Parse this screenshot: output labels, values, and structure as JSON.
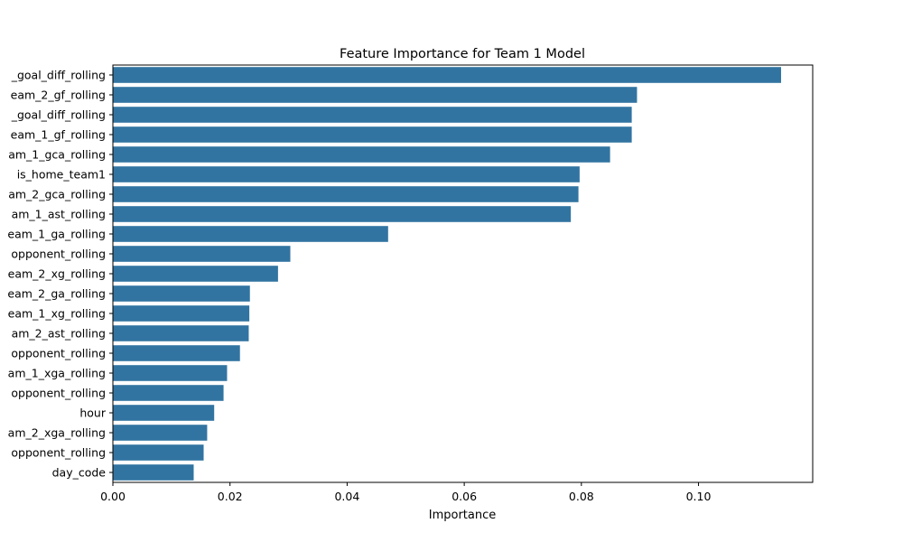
{
  "chart_data": {
    "type": "bar",
    "orientation": "horizontal",
    "title": "Feature Importance for Team 1 Model",
    "xlabel": "Importance",
    "ylabel": "",
    "xlim": [
      0,
      0.1195
    ],
    "xticks": [
      "0.00",
      "0.02",
      "0.04",
      "0.06",
      "0.08",
      "0.10"
    ],
    "xtick_values": [
      0,
      0.02,
      0.04,
      0.06,
      0.08,
      0.1
    ],
    "grid": false,
    "bar_color": "#3274a1",
    "categories": [
      "_goal_diff_rolling",
      "eam_2_gf_rolling",
      "_goal_diff_rolling",
      "eam_1_gf_rolling",
      "am_1_gca_rolling",
      "is_home_team1",
      "am_2_gca_rolling",
      "am_1_ast_rolling",
      "eam_1_ga_rolling",
      "opponent_rolling",
      "eam_2_xg_rolling",
      "eam_2_ga_rolling",
      "eam_1_xg_rolling",
      "am_2_ast_rolling",
      "opponent_rolling",
      "am_1_xga_rolling",
      "opponent_rolling",
      "hour",
      "am_2_xga_rolling",
      "opponent_rolling",
      "day_code"
    ],
    "values": [
      0.1141,
      0.0895,
      0.0886,
      0.0886,
      0.0849,
      0.0797,
      0.0795,
      0.0782,
      0.047,
      0.0303,
      0.0282,
      0.0234,
      0.0233,
      0.0232,
      0.0217,
      0.0195,
      0.0189,
      0.0173,
      0.0161,
      0.0155,
      0.0138
    ]
  }
}
